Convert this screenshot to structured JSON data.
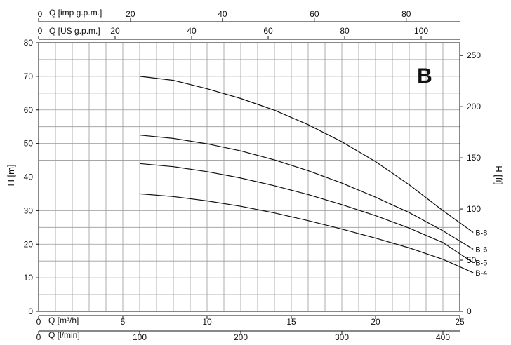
{
  "chart_data": {
    "type": "line",
    "title": "B",
    "ylabel": "H [m]",
    "ylabel_right": "H [ft]",
    "xlabel": "Q [m³/h]",
    "xlim": [
      0,
      25
    ],
    "ylim": [
      0,
      80
    ],
    "grid": true,
    "x_ticks": [
      "0",
      "5",
      "10",
      "15",
      "20",
      "25"
    ],
    "y_ticks": [
      "0",
      "10",
      "20",
      "30",
      "40",
      "50",
      "60",
      "70",
      "80"
    ],
    "secondary_axes": {
      "bottom_lmin": {
        "label": "Q [l/min]",
        "ticks": [
          "0",
          "100",
          "200",
          "300",
          "400"
        ]
      },
      "top_us_gpm": {
        "label": "Q [US g.p.m.]",
        "ticks": [
          "0",
          "20",
          "40",
          "60",
          "80",
          "100"
        ]
      },
      "top_imp_gpm": {
        "label": "Q [imp g.p.m.]",
        "ticks": [
          "0",
          "20",
          "40",
          "60",
          "80"
        ]
      },
      "right_ft": {
        "label": "H [ft]",
        "ticks": [
          "0",
          "50",
          "100",
          "150",
          "200",
          "250"
        ]
      }
    },
    "series": [
      {
        "name": "B-8",
        "x": [
          6,
          8,
          10,
          12,
          14,
          16,
          18,
          20,
          22,
          24,
          25.8
        ],
        "y": [
          70,
          68.8,
          66.3,
          63.4,
          59.9,
          55.6,
          50.5,
          44.6,
          37.7,
          30,
          23.5
        ]
      },
      {
        "name": "B-6",
        "x": [
          6,
          8,
          10,
          12,
          14,
          16,
          18,
          20,
          22,
          24,
          25.8
        ],
        "y": [
          52.5,
          51.5,
          49.9,
          47.8,
          45.1,
          41.9,
          38.2,
          34,
          29.4,
          24,
          18.5
        ]
      },
      {
        "name": "B-5",
        "x": [
          6,
          8,
          10,
          12,
          14,
          16,
          18,
          20,
          22,
          24,
          25.8
        ],
        "y": [
          44,
          43.1,
          41.6,
          39.7,
          37.4,
          34.8,
          31.8,
          28.5,
          24.8,
          20.5,
          14.5
        ]
      },
      {
        "name": "B-4",
        "x": [
          6,
          8,
          10,
          12,
          14,
          16,
          18,
          20,
          22,
          24,
          25.8
        ],
        "y": [
          35,
          34.2,
          32.9,
          31.3,
          29.3,
          27,
          24.5,
          21.8,
          18.9,
          15.5,
          11.5
        ]
      }
    ]
  }
}
